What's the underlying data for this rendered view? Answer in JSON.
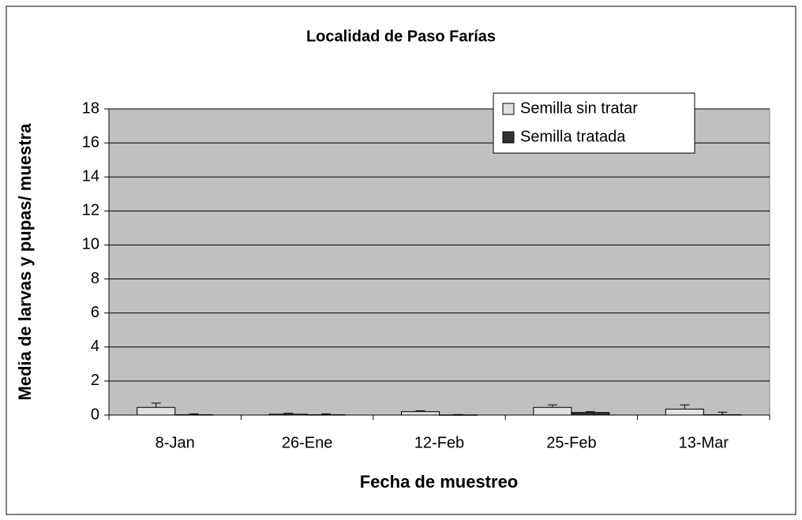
{
  "chart_data": {
    "type": "bar",
    "title": "Localidad de Paso Farías",
    "x_label": "Fecha de muestreo",
    "y_label": "Media de larvas y pupas/ muestra",
    "categories": [
      "8-Jan",
      "26-Ene",
      "12-Feb",
      "25-Feb",
      "13-Mar"
    ],
    "series": [
      {
        "name": "Semilla sin tratar",
        "color": "#e0e0e0",
        "values": [
          0.45,
          0.05,
          0.2,
          0.45,
          0.35
        ],
        "errors": [
          0.25,
          0.05,
          0.05,
          0.15,
          0.25
        ]
      },
      {
        "name": "Semilla tratada",
        "color": "#333333",
        "values": [
          0.02,
          0.02,
          0.01,
          0.15,
          0.02
        ],
        "errors": [
          0.05,
          0.05,
          0.02,
          0.05,
          0.15
        ]
      }
    ],
    "ylim": [
      0,
      18
    ],
    "yticks": [
      0,
      2,
      4,
      6,
      8,
      10,
      12,
      14,
      16,
      18
    ],
    "grid": true,
    "legend": "top-right"
  }
}
